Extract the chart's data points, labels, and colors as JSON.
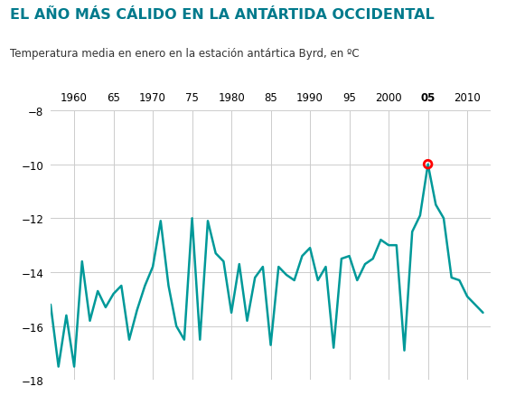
{
  "title": "EL AÑO MÁS CÁLIDO EN LA ANTÁRTIDA OCCIDENTAL",
  "subtitle": "Temperatura media en enero en la estación antártica Byrd, en ºC",
  "line_color": "#009999",
  "background_color": "#ffffff",
  "grid_color": "#cccccc",
  "title_color": "#007A8C",
  "years": [
    1957,
    1958,
    1959,
    1960,
    1961,
    1962,
    1963,
    1964,
    1965,
    1966,
    1967,
    1968,
    1969,
    1970,
    1971,
    1972,
    1973,
    1974,
    1975,
    1976,
    1977,
    1978,
    1979,
    1980,
    1981,
    1982,
    1983,
    1984,
    1985,
    1986,
    1987,
    1988,
    1989,
    1990,
    1991,
    1992,
    1993,
    1994,
    1995,
    1996,
    1997,
    1998,
    1999,
    2000,
    2001,
    2002,
    2003,
    2004,
    2005,
    2006,
    2007,
    2008,
    2009,
    2010,
    2011,
    2012
  ],
  "temps": [
    -15.2,
    -17.5,
    -15.6,
    -17.5,
    -13.6,
    -15.8,
    -14.7,
    -15.3,
    -14.8,
    -14.5,
    -16.5,
    -15.4,
    -14.5,
    -13.8,
    -12.1,
    -14.5,
    -16.0,
    -16.5,
    -12.0,
    -16.5,
    -12.1,
    -13.3,
    -13.6,
    -15.5,
    -13.7,
    -15.8,
    -14.2,
    -13.8,
    -16.7,
    -13.8,
    -14.1,
    -14.3,
    -13.4,
    -13.1,
    -14.3,
    -13.8,
    -16.8,
    -13.5,
    -13.4,
    -14.3,
    -13.7,
    -13.5,
    -12.8,
    -13.0,
    -13.0,
    -16.9,
    -12.5,
    -11.9,
    -10.0,
    -11.5,
    -12.0,
    -14.2,
    -14.3,
    -14.9,
    -15.2,
    -15.5
  ],
  "highlight_year": 2005,
  "highlight_temp": -10.0,
  "ylim": [
    -18,
    -8
  ],
  "yticks": [
    -18,
    -16,
    -14,
    -12,
    -10,
    -8
  ],
  "xtick_labels": [
    "1960",
    "65",
    "1970",
    "75",
    "1980",
    "85",
    "1990",
    "95",
    "2000",
    "05",
    "2010"
  ],
  "xtick_positions": [
    1960,
    1965,
    1970,
    1975,
    1980,
    1985,
    1990,
    1995,
    2000,
    2005,
    2010
  ],
  "bold_xtick": "05",
  "xlim": [
    1957,
    2013
  ]
}
